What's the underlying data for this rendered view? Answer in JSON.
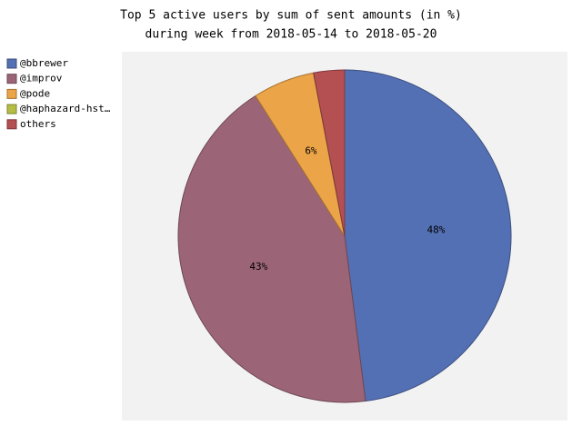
{
  "chart_data": {
    "type": "pie",
    "title": [
      "Top 5 active users by sum of sent amounts (in %)",
      "during week from 2018-05-14 to 2018-05-20"
    ],
    "categories": [
      "@bbrewer",
      "@improv",
      "@pode",
      "@haphazard-hst…",
      "others"
    ],
    "values": [
      48,
      43,
      6,
      0,
      3
    ],
    "value_labels": [
      "48%",
      "43%",
      "6%",
      null,
      null
    ],
    "colors": [
      "#5470b4",
      "#9c6577",
      "#eba447",
      "#b5bd45",
      "#b44f52"
    ],
    "legend": "left"
  }
}
